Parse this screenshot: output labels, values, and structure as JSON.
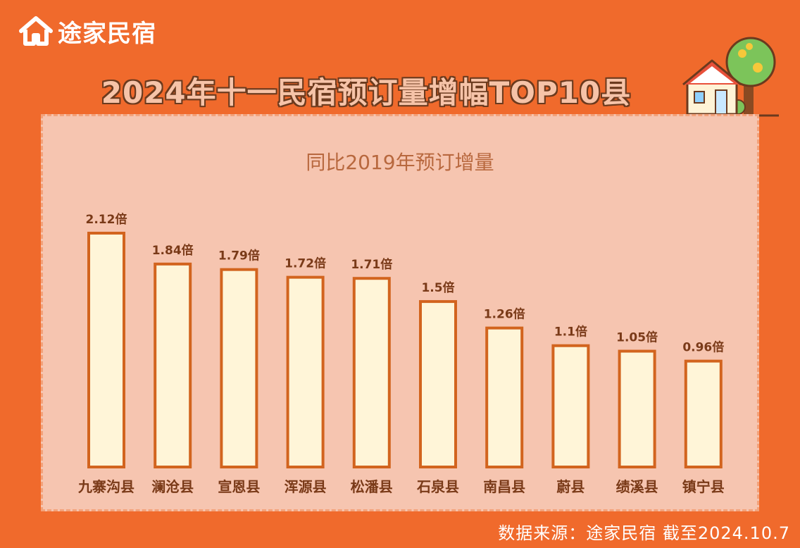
{
  "brand": {
    "name": "途家民宿",
    "icon": "house-logo-icon"
  },
  "header": {
    "title": "2024年十一民宿预订量增幅TOP10县"
  },
  "decoration": {
    "icon": "house-tree-icon"
  },
  "chart_data": {
    "type": "bar",
    "title": "同比2019年预订增量",
    "categories": [
      "九寨沟县",
      "澜沧县",
      "宣恩县",
      "浑源县",
      "松潘县",
      "石泉县",
      "南昌县",
      "蔚县",
      "绩溪县",
      "镇宁县"
    ],
    "values": [
      2.12,
      1.84,
      1.79,
      1.72,
      1.71,
      1.5,
      1.26,
      1.1,
      1.05,
      0.96
    ],
    "value_labels": [
      "2.12倍",
      "1.84倍",
      "1.79倍",
      "1.72倍",
      "1.71倍",
      "1.5倍",
      "1.26倍",
      "1.1倍",
      "1.05倍",
      "0.96倍"
    ],
    "xlabel": "",
    "ylabel": "",
    "ylim": [
      0,
      2.12
    ],
    "grid": false,
    "colors": {
      "bar_fill": "#fff5d8",
      "bar_stroke": "#d2641e",
      "panel": "#f6c5b0",
      "background": "#f06a2c"
    }
  },
  "footer": {
    "source": "数据来源：途家民宿 截至2024.10.7"
  }
}
